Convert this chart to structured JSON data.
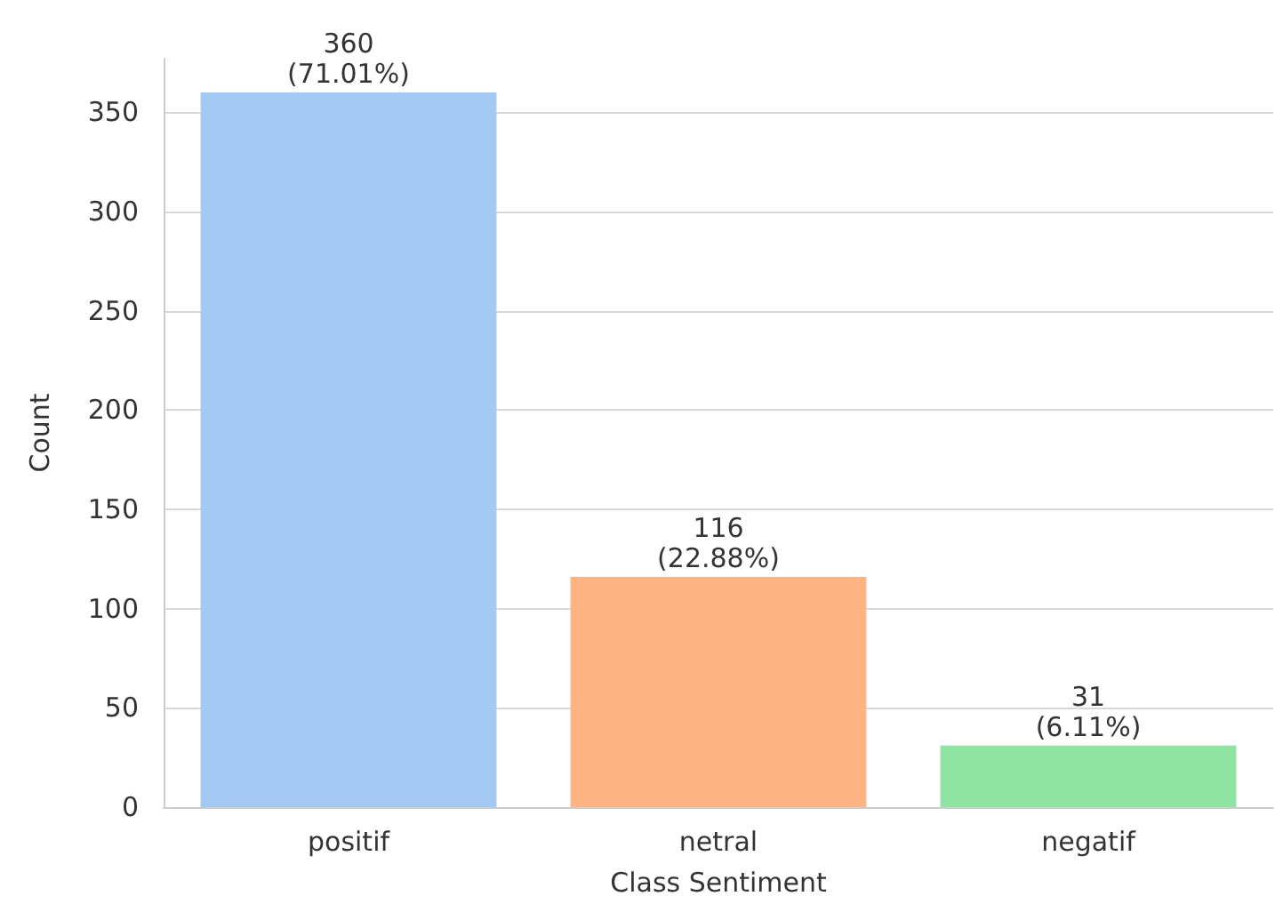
{
  "chart_data": {
    "type": "bar",
    "xlabel": "Class Sentiment",
    "ylabel": "Count",
    "categories": [
      "positif",
      "netral",
      "negatif"
    ],
    "values": [
      360,
      116,
      31
    ],
    "colors": [
      "#a1c9f4",
      "#ffb482",
      "#8de5a1"
    ],
    "value_labels": [
      "360\n(71.01%)",
      "116\n(22.88%)",
      "31\n(6.11%)"
    ],
    "ylim": [
      0,
      377
    ],
    "yticks": [
      0,
      50,
      100,
      150,
      200,
      250,
      300,
      350
    ],
    "grid": "y"
  }
}
